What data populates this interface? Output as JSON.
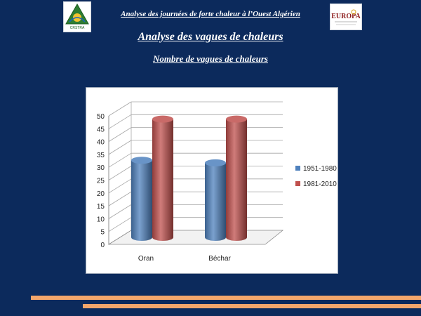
{
  "header": {
    "subject_title": "Analyse des journées de forte chaleur à l’Ouest Algérien",
    "left_logo": {
      "caption": "CRSTRA"
    },
    "right_logo": {
      "caption": "EUROPA"
    }
  },
  "slide": {
    "title": "Analyse des vagues de chaleurs",
    "subtitle": "Nombre de vagues de chaleurs"
  },
  "colors": {
    "background": "#0c2a5c",
    "series_1": "#4f81bd",
    "series_2": "#c0504d",
    "stripe": "#f4a66b"
  },
  "chart_data": {
    "type": "bar",
    "style": "3d-cylinder",
    "categories": [
      "Oran",
      "Béchar"
    ],
    "series": [
      {
        "name": "1951-1980",
        "values": [
          30,
          29
        ],
        "color": "#4f81bd"
      },
      {
        "name": "1981-2010",
        "values": [
          46,
          46
        ],
        "color": "#c0504d"
      }
    ],
    "title": "",
    "xlabel": "",
    "ylabel": "",
    "ylim": [
      0,
      50
    ],
    "yticks": [
      0,
      5,
      10,
      15,
      20,
      25,
      30,
      35,
      40,
      45,
      50
    ],
    "grid": true,
    "legend_position": "right"
  }
}
